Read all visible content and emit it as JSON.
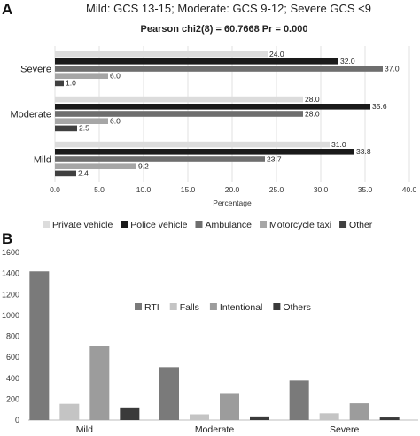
{
  "panels": {
    "a": "A",
    "b": "B"
  },
  "chart_data": [
    {
      "type": "bar",
      "orientation": "horizontal",
      "title": "Mild: GCS 13-15; Moderate: GCS 9-12; Severe GCS <9",
      "subtitle": "Pearson chi2(8) =   60.7668   Pr = 0.000",
      "xlabel": "Percentage",
      "ylabel": "",
      "xlim": [
        0,
        40
      ],
      "xticks": [
        "0.0",
        "5.0",
        "10.0",
        "15.0",
        "20.0",
        "25.0",
        "30.0",
        "35.0",
        "40.0"
      ],
      "grid": true,
      "legend_position": "bottom",
      "categories": [
        "Severe",
        "Moderate",
        "Mild"
      ],
      "series": [
        {
          "name": "Private vehicle",
          "color": "#dcdcdc",
          "values": [
            24.0,
            28.0,
            31.0
          ],
          "labels": [
            "24.0",
            "28.0",
            "31.0"
          ]
        },
        {
          "name": "Police vehicle",
          "color": "#1a1a1a",
          "values": [
            32.0,
            35.6,
            33.8
          ],
          "labels": [
            "32.0",
            "35.6",
            "33.8"
          ]
        },
        {
          "name": "Ambulance",
          "color": "#6e6e6e",
          "values": [
            37.0,
            28.0,
            23.7
          ],
          "labels": [
            "37.0",
            "28.0",
            "23.7"
          ]
        },
        {
          "name": "Motorcycle taxi",
          "color": "#a6a6a6",
          "values": [
            6.0,
            6.0,
            9.2
          ],
          "labels": [
            "6.0",
            "6.0",
            "9.2"
          ]
        },
        {
          "name": "Other",
          "color": "#404040",
          "values": [
            1.0,
            2.5,
            2.4
          ],
          "labels": [
            "1.0",
            "2.5",
            "2.4"
          ]
        }
      ]
    },
    {
      "type": "bar",
      "orientation": "vertical",
      "title": "",
      "xlabel": "",
      "ylabel": "",
      "ylim": [
        0,
        1600
      ],
      "yticks": [
        "0",
        "200",
        "400",
        "600",
        "800",
        "1000",
        "1200",
        "1400",
        "1600"
      ],
      "grid": false,
      "legend_position": "center",
      "categories": [
        "Mild",
        "Moderate",
        "Severe"
      ],
      "series": [
        {
          "name": "RTI",
          "color": "#7a7a7a",
          "values": [
            1420,
            505,
            378
          ]
        },
        {
          "name": "Falls",
          "color": "#c4c4c4",
          "values": [
            155,
            55,
            65
          ]
        },
        {
          "name": "Intentional",
          "color": "#9c9c9c",
          "values": [
            710,
            250,
            160
          ]
        },
        {
          "name": "Others",
          "color": "#3a3a3a",
          "values": [
            120,
            35,
            25
          ]
        }
      ]
    }
  ]
}
